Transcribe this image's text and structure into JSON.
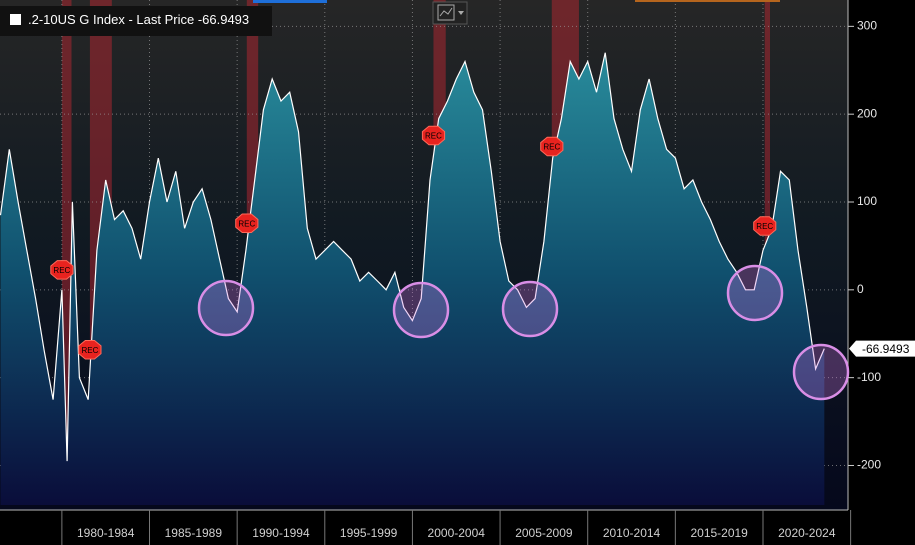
{
  "chart_data": {
    "type": "line",
    "title": ".2-10US G Index - Last Price",
    "x": [
      1976.5,
      1977,
      1977.5,
      1978,
      1978.5,
      1979,
      1979.5,
      1980,
      1980.3,
      1980.6,
      1981,
      1981.5,
      1982,
      1982.5,
      1983,
      1983.5,
      1984,
      1984.5,
      1985,
      1985.5,
      1986,
      1986.5,
      1987,
      1987.5,
      1988,
      1988.5,
      1989,
      1989.5,
      1990,
      1990.5,
      1991,
      1991.5,
      1992,
      1992.5,
      1993,
      1993.5,
      1994,
      1994.5,
      1995,
      1995.5,
      1996,
      1996.5,
      1997,
      1997.5,
      1998,
      1998.5,
      1999,
      1999.5,
      2000,
      2000.5,
      2001,
      2001.5,
      2002,
      2002.5,
      2003,
      2003.5,
      2004,
      2004.5,
      2005,
      2005.5,
      2006,
      2006.5,
      2007,
      2007.5,
      2008,
      2008.5,
      2009,
      2009.5,
      2010,
      2010.5,
      2011,
      2011.5,
      2012,
      2012.5,
      2013,
      2013.5,
      2014,
      2014.5,
      2015,
      2015.5,
      2016,
      2016.5,
      2017,
      2017.5,
      2018,
      2018.5,
      2019,
      2019.5,
      2020,
      2020.5,
      2021,
      2021.5,
      2022,
      2022.5,
      2023,
      2023.5
    ],
    "series": [
      {
        "name": ".2-10US G Index",
        "color": "#ffffff",
        "values": [
          85,
          160,
          100,
          45,
          -10,
          -70,
          -125,
          0,
          -195,
          100,
          -100,
          -125,
          45,
          125,
          80,
          90,
          70,
          35,
          100,
          150,
          100,
          135,
          70,
          100,
          115,
          80,
          35,
          -10,
          -25,
          45,
          125,
          205,
          240,
          215,
          225,
          180,
          70,
          35,
          45,
          55,
          45,
          35,
          10,
          20,
          10,
          0,
          20,
          -20,
          -35,
          -10,
          125,
          195,
          215,
          240,
          260,
          225,
          205,
          135,
          55,
          10,
          0,
          -20,
          -10,
          55,
          150,
          195,
          260,
          240,
          260,
          225,
          270,
          195,
          160,
          135,
          205,
          240,
          195,
          160,
          150,
          115,
          125,
          100,
          80,
          55,
          35,
          20,
          0,
          0,
          45,
          70,
          135,
          125,
          45,
          -20,
          -90,
          -66.9493
        ]
      }
    ],
    "categories": [
      "1980-1984",
      "1985-1989",
      "1990-1994",
      "1995-1999",
      "2000-2004",
      "2005-2009",
      "2010-2014",
      "2015-2019",
      "2020-2024"
    ],
    "xlim": [
      1976.47,
      2024.85
    ],
    "xticks": [
      1980,
      1985,
      1990,
      1995,
      2000,
      2005,
      2010,
      2015,
      2020,
      2025
    ],
    "ylim": [
      -245,
      330
    ],
    "yticks": [
      -200,
      -100,
      0,
      100,
      200,
      300
    ],
    "recessions": [
      [
        1980.0,
        1980.55
      ],
      [
        1981.6,
        1982.85
      ],
      [
        1990.55,
        1991.2
      ],
      [
        2001.2,
        2001.9
      ],
      [
        2007.95,
        2009.5
      ],
      [
        2020.1,
        2020.4
      ]
    ],
    "recession_label": "REC",
    "grid": true
  }
}
